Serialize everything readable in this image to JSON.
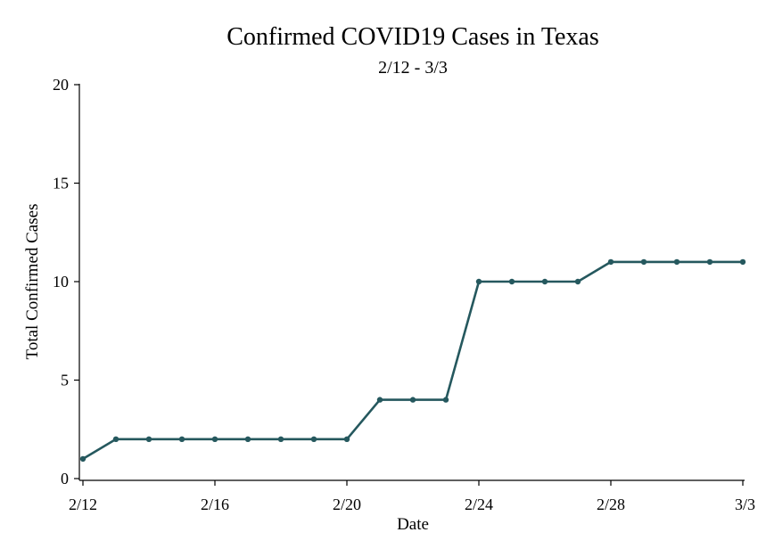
{
  "chart_data": {
    "type": "line",
    "title": "Confirmed COVID19 Cases in Texas",
    "subtitle": "2/12 - 3/3",
    "xlabel": "Date",
    "ylabel": "Total Confirmed Cases",
    "ylim": [
      0,
      20
    ],
    "yticks": [
      0,
      5,
      10,
      15,
      20
    ],
    "xtick_labels": [
      "2/12",
      "2/16",
      "2/20",
      "2/24",
      "2/28",
      "3/3"
    ],
    "grid": false,
    "line_color": "#25585e",
    "series": [
      {
        "x": [
          "2/12",
          "2/13",
          "2/14",
          "2/15",
          "2/16",
          "2/17",
          "2/18",
          "2/19",
          "2/20",
          "2/21",
          "2/22",
          "2/23",
          "2/24",
          "2/25",
          "2/26",
          "2/27",
          "2/28",
          "2/29",
          "3/1",
          "3/2",
          "3/3"
        ],
        "values": [
          1,
          2,
          2,
          2,
          2,
          2,
          2,
          2,
          2,
          4,
          4,
          4,
          10,
          10,
          10,
          10,
          11,
          11,
          11,
          11,
          11
        ]
      }
    ]
  }
}
